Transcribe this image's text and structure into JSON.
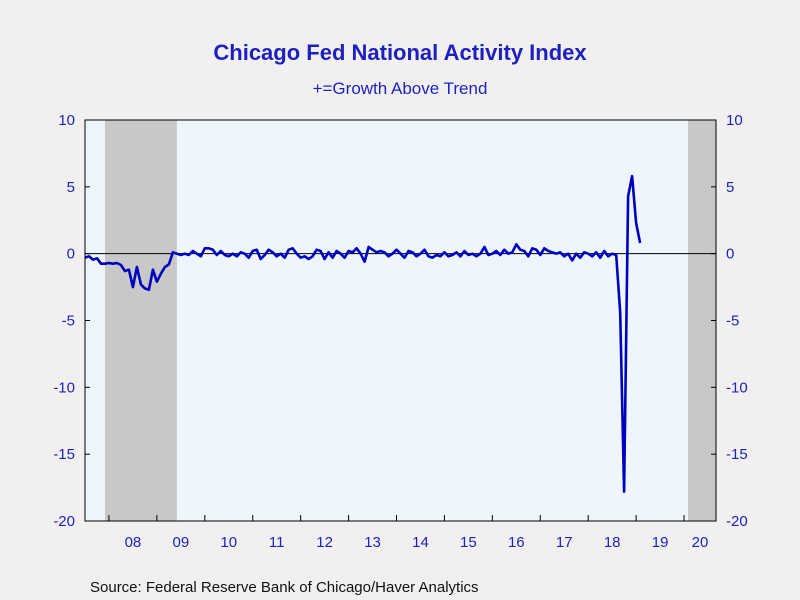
{
  "chart_data": {
    "type": "line",
    "title": "Chicago Fed National Activity Index",
    "subtitle": "+=Growth Above Trend",
    "source": "Source:  Federal Reserve Bank of Chicago/Haver Analytics",
    "y_ticks": [
      "10",
      "5",
      "0",
      "-5",
      "-10",
      "-15",
      "-20"
    ],
    "ylim": [
      -20,
      10
    ],
    "x_ticks": [
      "08",
      "09",
      "10",
      "11",
      "12",
      "13",
      "14",
      "15",
      "16",
      "17",
      "18",
      "19",
      "20"
    ],
    "xlim": [
      "2007-07",
      "2020-09"
    ],
    "recessions": [
      {
        "start": "2007-12",
        "end": "2009-06"
      },
      {
        "start": "2020-02",
        "end": "2020-09"
      }
    ],
    "grid": false,
    "colors": {
      "line": "#0000c0",
      "text": "#1f1fbf",
      "plot_bg": "#eef5fd",
      "recession": "#c8c8c8",
      "page_bg": "#f0f0f0"
    },
    "series": [
      {
        "start": "2007-07",
        "values": [
          -0.3,
          -0.2,
          -0.45,
          -0.35,
          -0.75,
          -0.75,
          -0.7,
          -0.75,
          -0.7,
          -0.85,
          -1.3,
          -1.2,
          -2.5,
          -1.0,
          -2.3,
          -2.6,
          -2.7,
          -1.2,
          -2.1,
          -1.5,
          -1.0,
          -0.8,
          0.1,
          0.0,
          -0.1,
          0.0,
          -0.1,
          0.2,
          0.0,
          -0.2,
          0.4,
          0.4,
          0.3,
          -0.1,
          0.2,
          -0.1,
          -0.2,
          0.0,
          -0.2,
          0.1,
          0.0,
          -0.3,
          0.2,
          0.3,
          -0.4,
          -0.1,
          0.3,
          0.1,
          -0.2,
          0.0,
          -0.3,
          0.3,
          0.4,
          0.0,
          -0.3,
          -0.2,
          -0.4,
          -0.2,
          0.3,
          0.2,
          -0.4,
          0.1,
          -0.3,
          0.2,
          0.0,
          -0.3,
          0.2,
          0.1,
          0.4,
          0.0,
          -0.6,
          0.5,
          0.3,
          0.1,
          0.2,
          0.1,
          -0.2,
          0.0,
          0.3,
          0.0,
          -0.3,
          0.2,
          0.1,
          -0.2,
          0.0,
          0.3,
          -0.2,
          -0.3,
          -0.1,
          -0.2,
          0.1,
          -0.2,
          -0.1,
          0.1,
          -0.2,
          0.2,
          -0.1,
          0.0,
          -0.2,
          0.0,
          0.5,
          -0.1,
          0.0,
          0.2,
          -0.1,
          0.3,
          0.0,
          0.1,
          0.7,
          0.3,
          0.2,
          -0.2,
          0.4,
          0.3,
          -0.1,
          0.4,
          0.2,
          0.1,
          0.0,
          0.1,
          -0.2,
          0.0,
          -0.5,
          0.0,
          -0.3,
          0.1,
          0.0,
          -0.2,
          0.1,
          -0.3,
          0.2,
          -0.2,
          0.0,
          -0.1,
          -4.4,
          -17.8,
          4.3,
          5.8,
          2.3,
          0.8
        ]
      }
    ]
  }
}
